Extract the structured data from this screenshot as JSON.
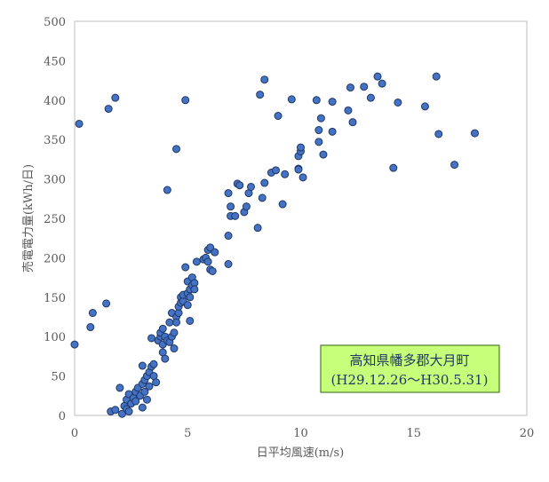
{
  "chart_data": {
    "type": "scatter",
    "xlabel": "日平均風速(m/s)",
    "ylabel": "売電電力量(kWh/日)",
    "xlim": [
      0,
      20
    ],
    "ylim": [
      0,
      500
    ],
    "xticks": [
      0,
      5,
      10,
      15,
      20
    ],
    "yticks": [
      0,
      50,
      100,
      150,
      200,
      250,
      300,
      350,
      400,
      450,
      500
    ],
    "grid": false,
    "legend": "none",
    "colors": {
      "marker_fill": "#4472c4",
      "marker_edge": "#203864",
      "annotation_fill": "#c6ff7a",
      "annotation_border": "#4e7d2b",
      "annotation_text": "#1f3864"
    },
    "annotation": {
      "line1": "高知県幡多郡大月町",
      "line2": "(H29.12.26～H30.5.31)"
    },
    "points": [
      [
        0.0,
        90
      ],
      [
        0.2,
        370
      ],
      [
        0.7,
        112
      ],
      [
        0.8,
        130
      ],
      [
        1.4,
        142
      ],
      [
        1.5,
        389
      ],
      [
        1.6,
        5
      ],
      [
        1.8,
        7
      ],
      [
        1.8,
        403
      ],
      [
        2.0,
        35
      ],
      [
        2.1,
        2
      ],
      [
        2.2,
        12
      ],
      [
        2.3,
        20
      ],
      [
        2.3,
        8
      ],
      [
        2.4,
        27
      ],
      [
        2.4,
        5
      ],
      [
        2.5,
        15
      ],
      [
        2.6,
        22
      ],
      [
        2.7,
        18
      ],
      [
        2.7,
        30
      ],
      [
        2.8,
        35
      ],
      [
        2.9,
        25
      ],
      [
        3.0,
        10
      ],
      [
        3.0,
        40
      ],
      [
        3.0,
        63
      ],
      [
        3.1,
        30
      ],
      [
        3.1,
        45
      ],
      [
        3.2,
        50
      ],
      [
        3.2,
        20
      ],
      [
        3.3,
        55
      ],
      [
        3.3,
        37
      ],
      [
        3.4,
        98
      ],
      [
        3.4,
        62
      ],
      [
        3.5,
        65
      ],
      [
        3.5,
        50
      ],
      [
        3.6,
        42
      ],
      [
        3.7,
        95
      ],
      [
        3.8,
        100
      ],
      [
        3.8,
        105
      ],
      [
        3.9,
        110
      ],
      [
        3.9,
        80
      ],
      [
        3.9,
        90
      ],
      [
        4.0,
        72
      ],
      [
        4.0,
        100
      ],
      [
        4.1,
        95
      ],
      [
        4.1,
        286
      ],
      [
        4.2,
        93
      ],
      [
        4.2,
        118
      ],
      [
        4.3,
        130
      ],
      [
        4.3,
        100
      ],
      [
        4.4,
        105
      ],
      [
        4.4,
        85
      ],
      [
        4.5,
        125
      ],
      [
        4.5,
        118
      ],
      [
        4.5,
        338
      ],
      [
        4.6,
        130
      ],
      [
        4.6,
        138
      ],
      [
        4.7,
        143
      ],
      [
        4.7,
        150
      ],
      [
        4.8,
        145
      ],
      [
        4.8,
        153
      ],
      [
        4.9,
        188
      ],
      [
        4.9,
        400
      ],
      [
        5.0,
        155
      ],
      [
        5.0,
        140
      ],
      [
        5.0,
        170
      ],
      [
        5.1,
        160
      ],
      [
        5.1,
        150
      ],
      [
        5.1,
        120
      ],
      [
        5.2,
        175
      ],
      [
        5.2,
        165
      ],
      [
        5.3,
        168
      ],
      [
        5.3,
        160
      ],
      [
        5.4,
        195
      ],
      [
        5.7,
        198
      ],
      [
        5.8,
        200
      ],
      [
        5.9,
        210
      ],
      [
        5.9,
        195
      ],
      [
        6.0,
        185
      ],
      [
        6.0,
        213
      ],
      [
        6.1,
        183
      ],
      [
        6.2,
        207
      ],
      [
        6.8,
        282
      ],
      [
        6.8,
        192
      ],
      [
        6.8,
        228
      ],
      [
        6.9,
        265
      ],
      [
        6.9,
        253
      ],
      [
        7.1,
        253
      ],
      [
        7.2,
        294
      ],
      [
        7.3,
        292
      ],
      [
        7.5,
        258
      ],
      [
        7.6,
        265
      ],
      [
        7.7,
        282
      ],
      [
        7.8,
        290
      ],
      [
        8.1,
        238
      ],
      [
        8.2,
        407
      ],
      [
        8.3,
        276
      ],
      [
        8.4,
        426
      ],
      [
        8.4,
        295
      ],
      [
        8.7,
        308
      ],
      [
        8.9,
        311
      ],
      [
        9.0,
        380
      ],
      [
        9.2,
        268
      ],
      [
        9.3,
        306
      ],
      [
        9.6,
        401
      ],
      [
        9.9,
        329
      ],
      [
        9.9,
        313
      ],
      [
        9.9,
        312
      ],
      [
        10.0,
        335
      ],
      [
        10.0,
        340
      ],
      [
        10.1,
        302
      ],
      [
        10.7,
        400
      ],
      [
        10.8,
        362
      ],
      [
        10.8,
        347
      ],
      [
        10.9,
        377
      ],
      [
        11.0,
        331
      ],
      [
        11.4,
        398
      ],
      [
        11.4,
        360
      ],
      [
        12.1,
        387
      ],
      [
        12.2,
        416
      ],
      [
        12.3,
        372
      ],
      [
        12.8,
        417
      ],
      [
        13.1,
        403
      ],
      [
        13.4,
        430
      ],
      [
        13.6,
        421
      ],
      [
        14.1,
        314
      ],
      [
        14.3,
        397
      ],
      [
        15.5,
        392
      ],
      [
        16.0,
        430
      ],
      [
        16.1,
        357
      ],
      [
        16.8,
        318
      ],
      [
        17.7,
        358
      ]
    ]
  }
}
